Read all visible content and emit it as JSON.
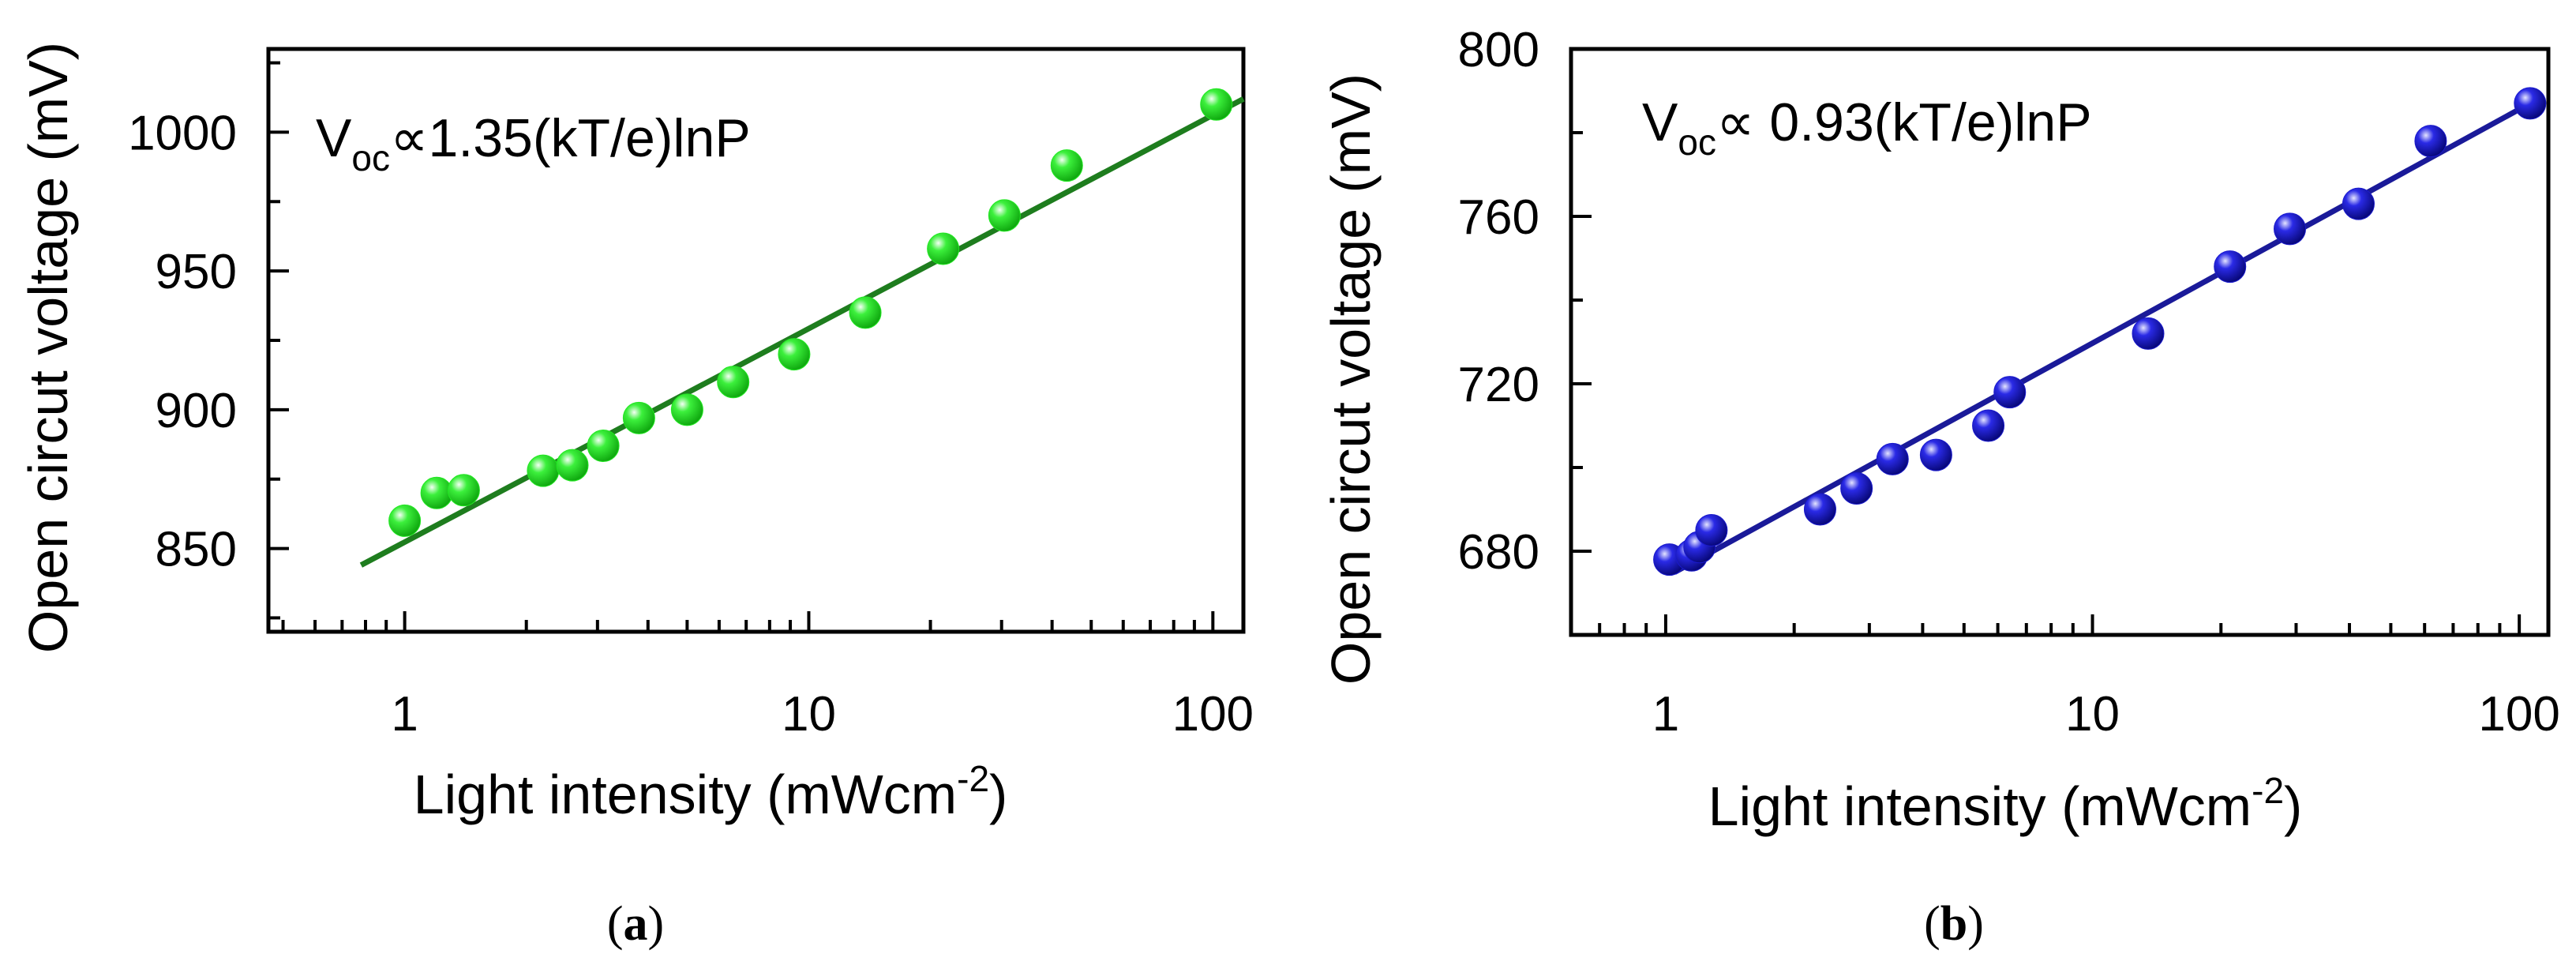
{
  "chart_data": [
    {
      "type": "scatter",
      "panel": "a",
      "panel_label_open": "(",
      "panel_label_letter": "a",
      "panel_label_close": ")",
      "xlabel_main": "Light intensity (mWcm",
      "xlabel_sup": "-2",
      "xlabel_end": ")",
      "ylabel": "Open circut voltage (mV)",
      "xscale": "log",
      "xlim": [
        0.46,
        119
      ],
      "ylim": [
        820,
        1030
      ],
      "xticks": [
        1,
        10,
        100
      ],
      "xtick_labels": [
        "1",
        "10",
        "100"
      ],
      "yticks": [
        850,
        900,
        950,
        1000
      ],
      "ytick_labels": [
        "850",
        "900",
        "950",
        "1000"
      ],
      "annotation": {
        "main": "V",
        "sub": "oc",
        "rest": "∝1.35(kT/e)lnP"
      },
      "marker_color": "#22e822",
      "line_color": "#1e7d1e",
      "points": {
        "x": [
          1.0,
          1.2,
          1.4,
          2.2,
          2.6,
          3.1,
          3.8,
          5.0,
          6.5,
          9.2,
          13.8,
          21.5,
          30.5,
          43.5,
          102
        ],
        "y": [
          860,
          870,
          871,
          878,
          880,
          887,
          897,
          900,
          910,
          920,
          935,
          958,
          970,
          988,
          1010
        ]
      },
      "fit_line": {
        "x": [
          0.78,
          119
        ],
        "y": [
          844,
          1012
        ]
      }
    },
    {
      "type": "scatter",
      "panel": "b",
      "panel_label_open": "(",
      "panel_label_letter": "b",
      "panel_label_close": ")",
      "xlabel_main": "Light intensity (mWcm",
      "xlabel_sup": "-2",
      "xlabel_end": ")",
      "ylabel": "Open circut voltage (mV)",
      "xscale": "log",
      "xlim": [
        0.6,
        117
      ],
      "ylim": [
        660,
        800
      ],
      "xticks": [
        1,
        10,
        100
      ],
      "xtick_labels": [
        "1",
        "10",
        "100"
      ],
      "yticks": [
        680,
        720,
        760,
        800
      ],
      "ytick_labels": [
        "680",
        "720",
        "760",
        "800"
      ],
      "annotation": {
        "main": "V",
        "sub": "oc",
        "rest": "∝ 0.93(kT/e)lnP"
      },
      "marker_color": "#1a1acc",
      "line_color": "#1a1a99",
      "points": {
        "x": [
          1.02,
          1.15,
          1.2,
          1.28,
          2.3,
          2.8,
          3.4,
          4.3,
          5.7,
          6.4,
          13.5,
          21,
          29,
          42,
          62,
          106
        ],
        "y": [
          678,
          679,
          681,
          685,
          690,
          695,
          702,
          703,
          710,
          718,
          732,
          748,
          757,
          763,
          778,
          787
        ]
      },
      "fit_line": {
        "x": [
          1.05,
          106
        ],
        "y": [
          675,
          787
        ]
      }
    }
  ]
}
